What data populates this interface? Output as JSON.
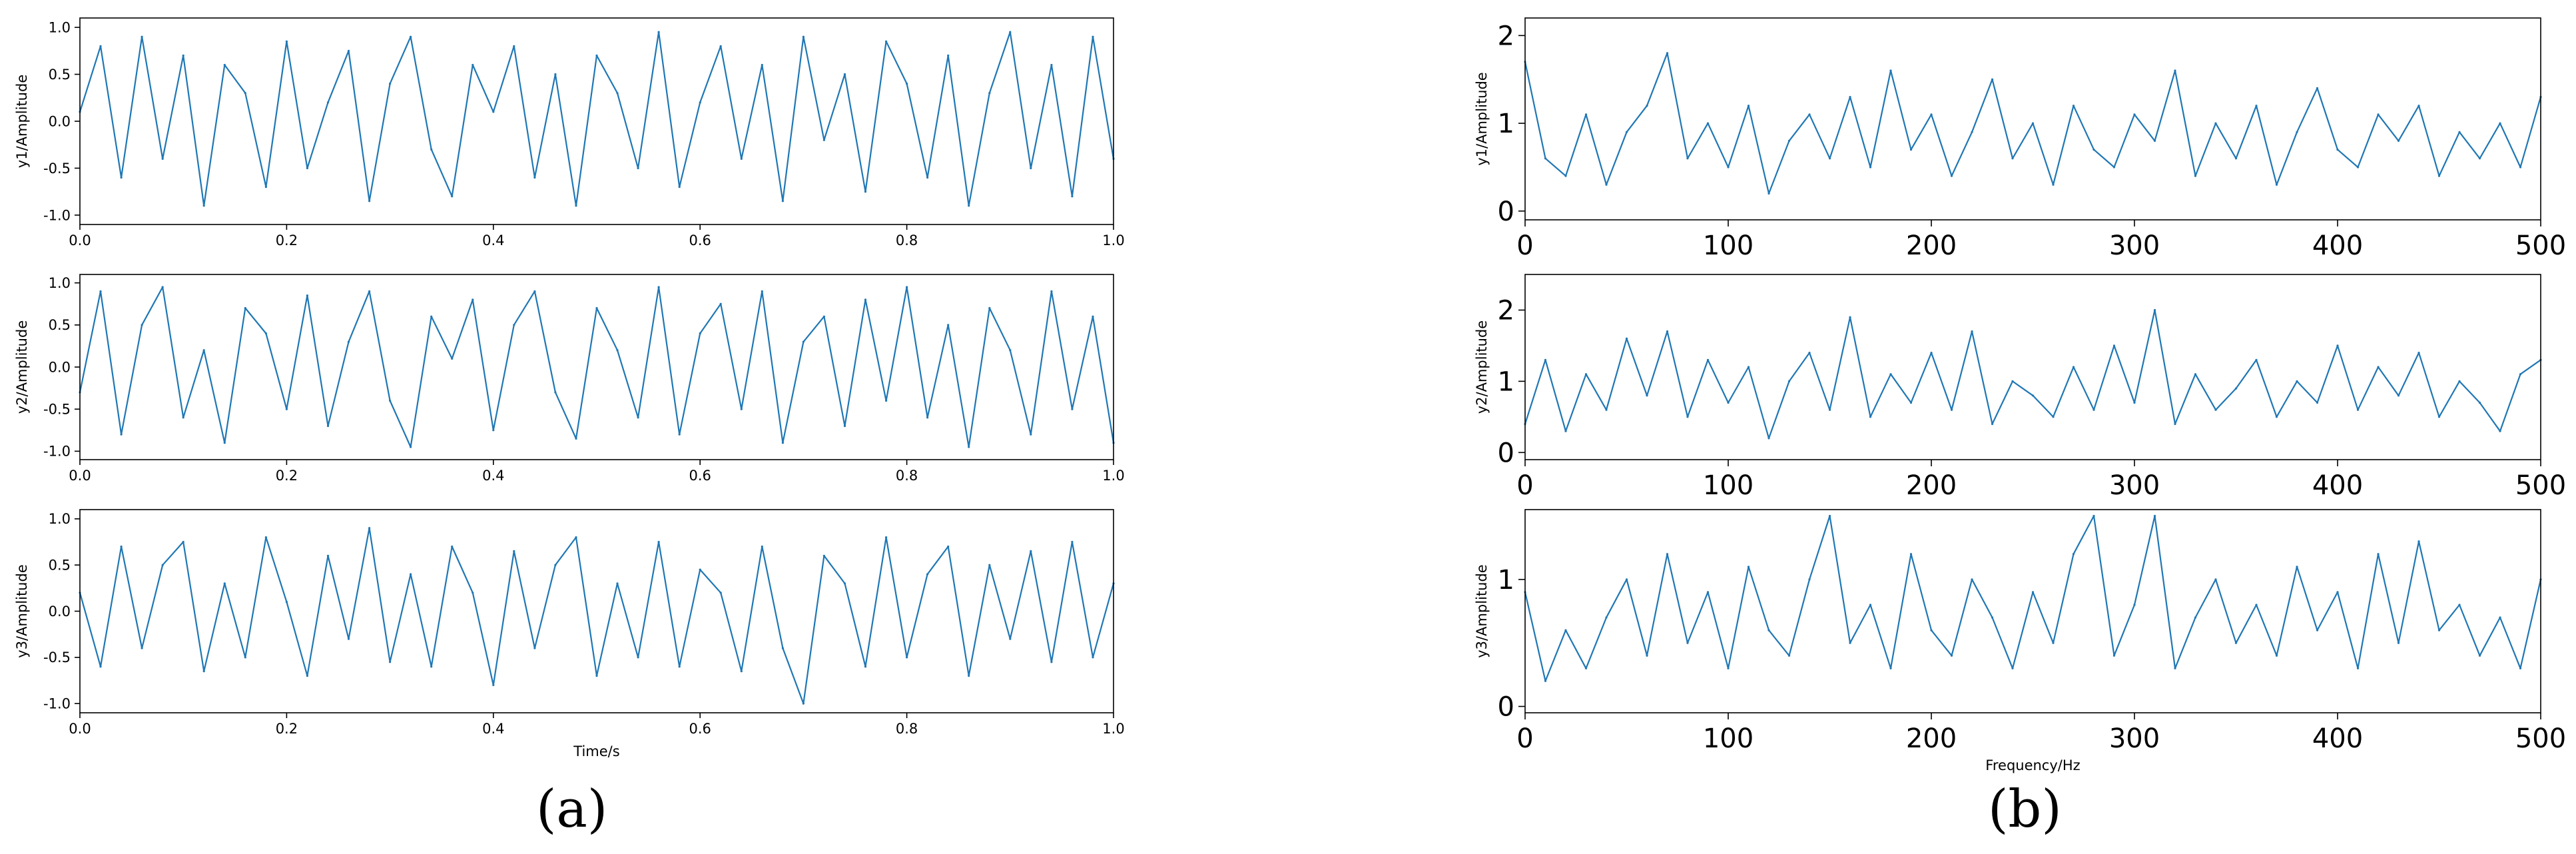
{
  "figure": {
    "panel_labels": [
      "(a)",
      "(b)"
    ]
  },
  "style": {
    "line_color": "#1f77b4",
    "axes_color": "#000000",
    "background": "#ffffff"
  },
  "chart_data": [
    {
      "type": "line",
      "panel": "(a)",
      "ylabel": "y1/Amplitude",
      "xlabel": "",
      "xlim": [
        0.0,
        1.0
      ],
      "ylim": [
        -1.1,
        1.1
      ],
      "xticks": [
        "0.0",
        "0.2",
        "0.4",
        "0.6",
        "0.8",
        "1.0"
      ],
      "yticks": [
        "-1.0",
        "-0.5",
        "0.0",
        "0.5",
        "1.0"
      ],
      "x": [
        0.0,
        0.02,
        0.04,
        0.06,
        0.08,
        0.1,
        0.12,
        0.14,
        0.16,
        0.18,
        0.2,
        0.22,
        0.24,
        0.26,
        0.28,
        0.3,
        0.32,
        0.34,
        0.36,
        0.38,
        0.4,
        0.42,
        0.44,
        0.46,
        0.48,
        0.5,
        0.52,
        0.54,
        0.56,
        0.58,
        0.6,
        0.62,
        0.64,
        0.66,
        0.68,
        0.7,
        0.72,
        0.74,
        0.76,
        0.78,
        0.8,
        0.82,
        0.84,
        0.86,
        0.88,
        0.9,
        0.92,
        0.94,
        0.96,
        0.98,
        1.0
      ],
      "series": [
        {
          "values": [
            0.1,
            0.8,
            -0.6,
            0.9,
            -0.4,
            0.7,
            -0.9,
            0.6,
            0.3,
            -0.7,
            0.85,
            -0.5,
            0.2,
            0.75,
            -0.85,
            0.4,
            0.9,
            -0.3,
            -0.8,
            0.6,
            0.1,
            0.8,
            -0.6,
            0.5,
            -0.9,
            0.7,
            0.3,
            -0.5,
            0.95,
            -0.7,
            0.2,
            0.8,
            -0.4,
            0.6,
            -0.85,
            0.9,
            -0.2,
            0.5,
            -0.75,
            0.85,
            0.4,
            -0.6,
            0.7,
            -0.9,
            0.3,
            0.95,
            -0.5,
            0.6,
            -0.8,
            0.9,
            -0.4
          ]
        }
      ]
    },
    {
      "type": "line",
      "panel": "(a)",
      "ylabel": "y2/Amplitude",
      "xlabel": "",
      "xlim": [
        0.0,
        1.0
      ],
      "ylim": [
        -1.1,
        1.1
      ],
      "xticks": [
        "0.0",
        "0.2",
        "0.4",
        "0.6",
        "0.8",
        "1.0"
      ],
      "yticks": [
        "-1.0",
        "-0.5",
        "0.0",
        "0.5",
        "1.0"
      ],
      "x": [
        0.0,
        0.02,
        0.04,
        0.06,
        0.08,
        0.1,
        0.12,
        0.14,
        0.16,
        0.18,
        0.2,
        0.22,
        0.24,
        0.26,
        0.28,
        0.3,
        0.32,
        0.34,
        0.36,
        0.38,
        0.4,
        0.42,
        0.44,
        0.46,
        0.48,
        0.5,
        0.52,
        0.54,
        0.56,
        0.58,
        0.6,
        0.62,
        0.64,
        0.66,
        0.68,
        0.7,
        0.72,
        0.74,
        0.76,
        0.78,
        0.8,
        0.82,
        0.84,
        0.86,
        0.88,
        0.9,
        0.92,
        0.94,
        0.96,
        0.98,
        1.0
      ],
      "series": [
        {
          "values": [
            -0.3,
            0.9,
            -0.8,
            0.5,
            0.95,
            -0.6,
            0.2,
            -0.9,
            0.7,
            0.4,
            -0.5,
            0.85,
            -0.7,
            0.3,
            0.9,
            -0.4,
            -0.95,
            0.6,
            0.1,
            0.8,
            -0.75,
            0.5,
            0.9,
            -0.3,
            -0.85,
            0.7,
            0.2,
            -0.6,
            0.95,
            -0.8,
            0.4,
            0.75,
            -0.5,
            0.9,
            -0.9,
            0.3,
            0.6,
            -0.7,
            0.8,
            -0.4,
            0.95,
            -0.6,
            0.5,
            -0.95,
            0.7,
            0.2,
            -0.8,
            0.9,
            -0.5,
            0.6,
            -0.9
          ]
        }
      ]
    },
    {
      "type": "line",
      "panel": "(a)",
      "ylabel": "y3/Amplitude",
      "xlabel": "Time/s",
      "xlim": [
        0.0,
        1.0
      ],
      "ylim": [
        -1.1,
        1.1
      ],
      "xticks": [
        "0.0",
        "0.2",
        "0.4",
        "0.6",
        "0.8",
        "1.0"
      ],
      "yticks": [
        "-1.0",
        "-0.5",
        "0.0",
        "0.5",
        "1.0"
      ],
      "x": [
        0.0,
        0.02,
        0.04,
        0.06,
        0.08,
        0.1,
        0.12,
        0.14,
        0.16,
        0.18,
        0.2,
        0.22,
        0.24,
        0.26,
        0.28,
        0.3,
        0.32,
        0.34,
        0.36,
        0.38,
        0.4,
        0.42,
        0.44,
        0.46,
        0.48,
        0.5,
        0.52,
        0.54,
        0.56,
        0.58,
        0.6,
        0.62,
        0.64,
        0.66,
        0.68,
        0.7,
        0.72,
        0.74,
        0.76,
        0.78,
        0.8,
        0.82,
        0.84,
        0.86,
        0.88,
        0.9,
        0.92,
        0.94,
        0.96,
        0.98,
        1.0
      ],
      "series": [
        {
          "values": [
            0.2,
            -0.6,
            0.7,
            -0.4,
            0.5,
            0.75,
            -0.65,
            0.3,
            -0.5,
            0.8,
            0.1,
            -0.7,
            0.6,
            -0.3,
            0.9,
            -0.55,
            0.4,
            -0.6,
            0.7,
            0.2,
            -0.8,
            0.65,
            -0.4,
            0.5,
            0.8,
            -0.7,
            0.3,
            -0.5,
            0.75,
            -0.6,
            0.45,
            0.2,
            -0.65,
            0.7,
            -0.4,
            -1.0,
            0.6,
            0.3,
            -0.6,
            0.8,
            -0.5,
            0.4,
            0.7,
            -0.7,
            0.5,
            -0.3,
            0.65,
            -0.55,
            0.75,
            -0.5,
            0.3
          ]
        }
      ]
    },
    {
      "type": "line",
      "panel": "(b)",
      "ylabel": "y1/Amplitude",
      "xlabel": "",
      "xlim": [
        0,
        500
      ],
      "ylim": [
        -0.1,
        2.2
      ],
      "xticks": [
        "0",
        "100",
        "200",
        "300",
        "400",
        "500"
      ],
      "yticks": [
        "0",
        "1",
        "2"
      ],
      "x": [
        0,
        10,
        20,
        30,
        40,
        50,
        60,
        70,
        80,
        90,
        100,
        110,
        120,
        130,
        140,
        150,
        160,
        170,
        180,
        190,
        200,
        210,
        220,
        230,
        240,
        250,
        260,
        270,
        280,
        290,
        300,
        310,
        320,
        330,
        340,
        350,
        360,
        370,
        380,
        390,
        400,
        410,
        420,
        430,
        440,
        450,
        460,
        470,
        480,
        490,
        500
      ],
      "series": [
        {
          "values": [
            1.7,
            0.6,
            0.4,
            1.1,
            0.3,
            0.9,
            1.2,
            1.8,
            0.6,
            1.0,
            0.5,
            1.2,
            0.2,
            0.8,
            1.1,
            0.6,
            1.3,
            0.5,
            1.6,
            0.7,
            1.1,
            0.4,
            0.9,
            1.5,
            0.6,
            1.0,
            0.3,
            1.2,
            0.7,
            0.5,
            1.1,
            0.8,
            1.6,
            0.4,
            1.0,
            0.6,
            1.2,
            0.3,
            0.9,
            1.4,
            0.7,
            0.5,
            1.1,
            0.8,
            1.2,
            0.4,
            0.9,
            0.6,
            1.0,
            0.5,
            1.3
          ]
        }
      ]
    },
    {
      "type": "line",
      "panel": "(b)",
      "ylabel": "y2/Amplitude",
      "xlabel": "",
      "xlim": [
        0,
        500
      ],
      "ylim": [
        -0.1,
        2.5
      ],
      "xticks": [
        "0",
        "100",
        "200",
        "300",
        "400",
        "500"
      ],
      "yticks": [
        "0",
        "1",
        "2"
      ],
      "x": [
        0,
        10,
        20,
        30,
        40,
        50,
        60,
        70,
        80,
        90,
        100,
        110,
        120,
        130,
        140,
        150,
        160,
        170,
        180,
        190,
        200,
        210,
        220,
        230,
        240,
        250,
        260,
        270,
        280,
        290,
        300,
        310,
        320,
        330,
        340,
        350,
        360,
        370,
        380,
        390,
        400,
        410,
        420,
        430,
        440,
        450,
        460,
        470,
        480,
        490,
        500
      ],
      "series": [
        {
          "values": [
            0.4,
            1.3,
            0.3,
            1.1,
            0.6,
            1.6,
            0.8,
            1.7,
            0.5,
            1.3,
            0.7,
            1.2,
            0.2,
            1.0,
            1.4,
            0.6,
            1.9,
            0.5,
            1.1,
            0.7,
            1.4,
            0.6,
            1.7,
            0.4,
            1.0,
            0.8,
            0.5,
            1.2,
            0.6,
            1.5,
            0.7,
            2.0,
            0.4,
            1.1,
            0.6,
            0.9,
            1.3,
            0.5,
            1.0,
            0.7,
            1.5,
            0.6,
            1.2,
            0.8,
            1.4,
            0.5,
            1.0,
            0.7,
            0.3,
            1.1,
            1.3
          ]
        }
      ]
    },
    {
      "type": "line",
      "panel": "(b)",
      "ylabel": "y3/Amplitude",
      "xlabel": "Frequency/Hz",
      "xlim": [
        0,
        500
      ],
      "ylim": [
        -0.05,
        1.55
      ],
      "xticks": [
        "0",
        "100",
        "200",
        "300",
        "400",
        "500"
      ],
      "yticks": [
        "0",
        "1"
      ],
      "x": [
        0,
        10,
        20,
        30,
        40,
        50,
        60,
        70,
        80,
        90,
        100,
        110,
        120,
        130,
        140,
        150,
        160,
        170,
        180,
        190,
        200,
        210,
        220,
        230,
        240,
        250,
        260,
        270,
        280,
        290,
        300,
        310,
        320,
        330,
        340,
        350,
        360,
        370,
        380,
        390,
        400,
        410,
        420,
        430,
        440,
        450,
        460,
        470,
        480,
        490,
        500
      ],
      "series": [
        {
          "values": [
            0.9,
            0.2,
            0.6,
            0.3,
            0.7,
            1.0,
            0.4,
            1.2,
            0.5,
            0.9,
            0.3,
            1.1,
            0.6,
            0.4,
            1.0,
            1.5,
            0.5,
            0.8,
            0.3,
            1.2,
            0.6,
            0.4,
            1.0,
            0.7,
            0.3,
            0.9,
            0.5,
            1.2,
            1.5,
            0.4,
            0.8,
            1.5,
            0.3,
            0.7,
            1.0,
            0.5,
            0.8,
            0.4,
            1.1,
            0.6,
            0.9,
            0.3,
            1.2,
            0.5,
            1.3,
            0.6,
            0.8,
            0.4,
            0.7,
            0.3,
            1.0
          ]
        }
      ]
    }
  ]
}
